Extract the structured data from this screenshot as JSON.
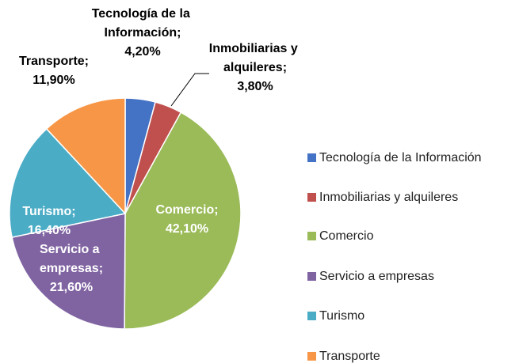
{
  "chart_data": {
    "type": "pie",
    "categories": [
      "Tecnología de la Información",
      "Inmobiliarias y alquileres",
      "Comercio",
      "Servicio a empresas",
      "Turismo",
      "Transporte"
    ],
    "values": [
      4.2,
      3.8,
      42.1,
      21.6,
      16.4,
      11.9
    ],
    "value_labels": [
      "4,20%",
      "3,80%",
      "42,10%",
      "21,60%",
      "16,40%",
      "11,90%"
    ],
    "label_separator": ";",
    "colors": [
      "#4472c4",
      "#c0504d",
      "#9bbb59",
      "#8064a2",
      "#4bacc6",
      "#f79646"
    ],
    "legend": "right"
  }
}
